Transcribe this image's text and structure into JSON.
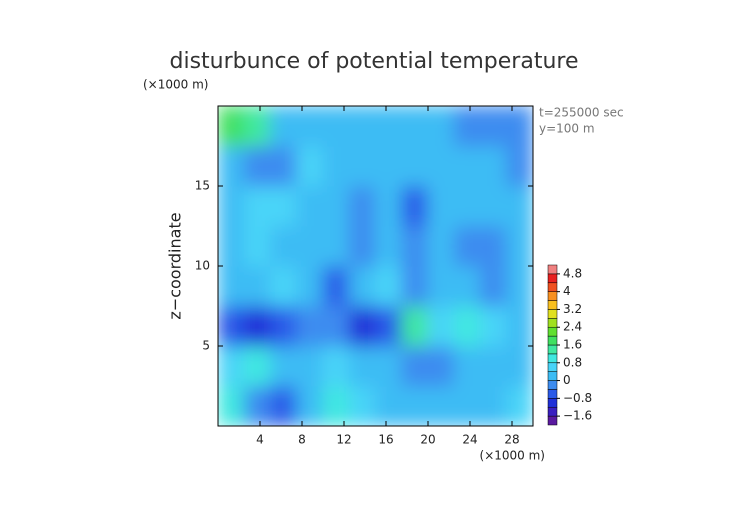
{
  "chart_data": {
    "type": "contour",
    "title": "disturbunce of potential temperature",
    "y_unit": "(×1000 m)",
    "x_unit": "(×1000 m)",
    "ylabel": "z−coordinate",
    "annotations": [
      "t=255000 sec",
      "y=100 m"
    ],
    "xlim": [
      0,
      30
    ],
    "ylim": [
      0,
      20
    ],
    "xticks": [
      4,
      8,
      12,
      16,
      20,
      24,
      28
    ],
    "yticks": [
      5,
      10,
      15
    ],
    "x": [
      1.25,
      3.75,
      6.25,
      8.75,
      11.25,
      13.75,
      16.25,
      18.75,
      21.25,
      23.75,
      26.25,
      28.75
    ],
    "y": [
      1.25,
      3.75,
      6.25,
      8.75,
      11.25,
      13.75,
      16.25,
      18.75
    ],
    "z": [
      [
        0.8,
        -0.2,
        -0.8,
        0.2,
        0.8,
        0.4,
        0.2,
        0.2,
        0.2,
        0,
        0.2,
        0.4
      ],
      [
        0.6,
        0.8,
        0.2,
        0.2,
        0.4,
        0.2,
        0,
        -0.4,
        -0.2,
        0.2,
        0.2,
        0.2
      ],
      [
        -0.8,
        -1.2,
        -0.8,
        -0.4,
        -0.4,
        -1.0,
        -0.8,
        1.2,
        0.6,
        1.0,
        0.4,
        0
      ],
      [
        0,
        0.2,
        0.4,
        0.2,
        -0.6,
        0,
        0.4,
        -0.2,
        0.2,
        0,
        -0.4,
        0
      ],
      [
        0.2,
        0.4,
        0.2,
        0,
        0.2,
        -0.4,
        0.2,
        -0.4,
        0,
        -0.4,
        -0.4,
        0
      ],
      [
        0.2,
        0.4,
        0.4,
        0.2,
        0,
        -0.2,
        0.2,
        -0.6,
        0.2,
        0,
        0.2,
        0
      ],
      [
        0,
        -0.2,
        -0.4,
        0.4,
        0.2,
        0,
        0.2,
        0.2,
        0,
        0.2,
        0,
        -0.2
      ],
      [
        1.6,
        1.2,
        0,
        0.2,
        0.2,
        0,
        0.2,
        0.2,
        0,
        -0.2,
        -0.4,
        -0.2
      ]
    ],
    "clim": [
      -2.0,
      5.2
    ],
    "colors": [
      "#5a1aa0",
      "#3a1fc0",
      "#2030d8",
      "#2a5ae8",
      "#3c8cf0",
      "#3cbcf4",
      "#48d4f8",
      "#40e8e0",
      "#40e8a0",
      "#40e060",
      "#60e030",
      "#a0e020",
      "#e0e020",
      "#f8c020",
      "#f89020",
      "#f05020",
      "#e82020",
      "#f08080"
    ],
    "cticks": [
      {
        "value": -1.6,
        "label": "−1.6"
      },
      {
        "value": -0.8,
        "label": "−0.8"
      },
      0,
      0.8,
      1.6,
      2.4,
      3.2,
      4,
      4.8
    ]
  }
}
